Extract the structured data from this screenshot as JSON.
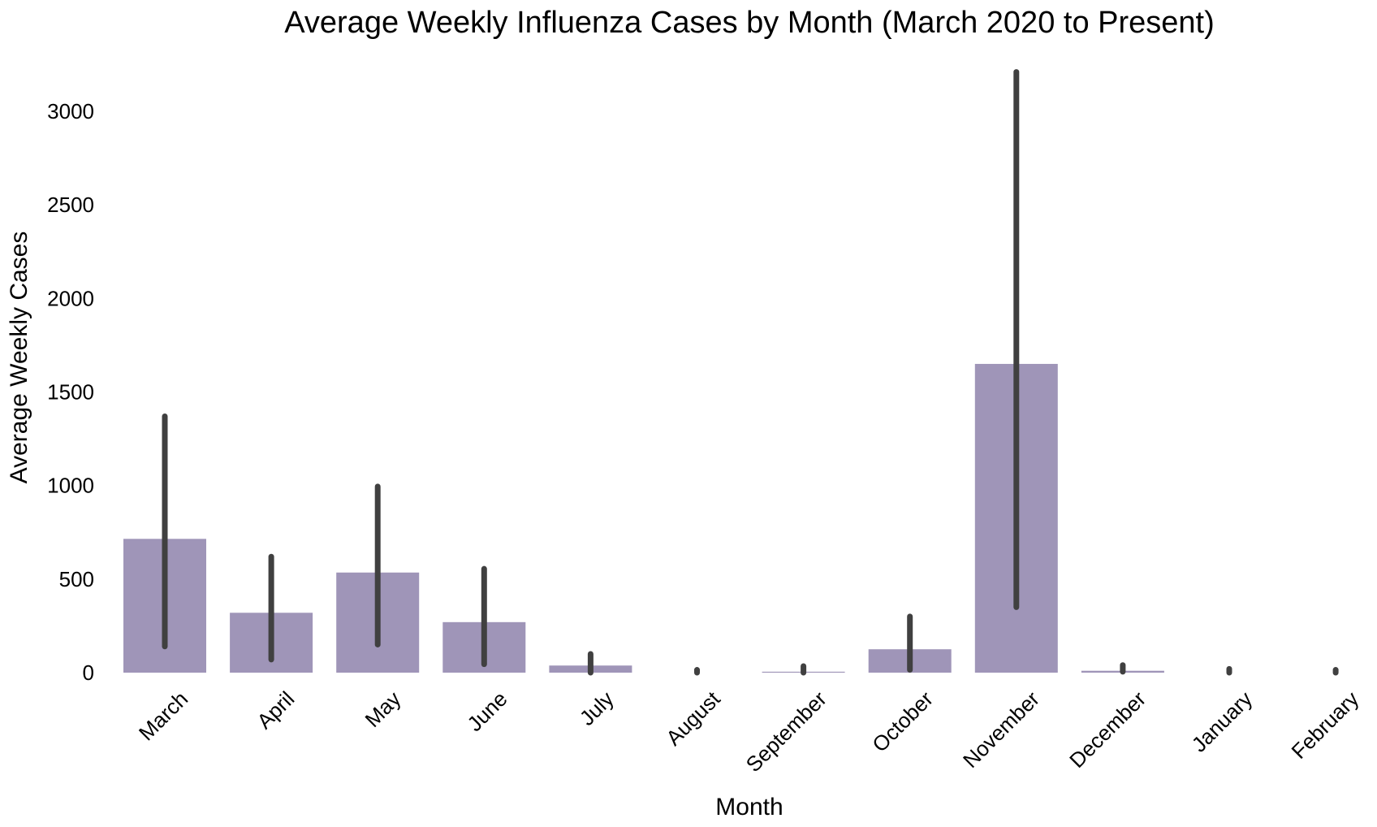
{
  "chart_data": {
    "type": "bar",
    "title": "Average Weekly Influenza Cases by Month (March 2020 to Present)",
    "xlabel": "Month",
    "ylabel": "Average Weekly Cases",
    "categories": [
      "March",
      "April",
      "May",
      "June",
      "July",
      "August",
      "September",
      "October",
      "November",
      "December",
      "January",
      "February"
    ],
    "values": [
      715,
      320,
      535,
      270,
      38,
      0,
      5,
      125,
      1650,
      10,
      0,
      0
    ],
    "error_bars": [
      [
        140,
        1370
      ],
      [
        70,
        620
      ],
      [
        150,
        995
      ],
      [
        45,
        555
      ],
      [
        0,
        100
      ],
      [
        0,
        15
      ],
      [
        0,
        35
      ],
      [
        15,
        300
      ],
      [
        350,
        3210
      ],
      [
        5,
        40
      ],
      [
        0,
        20
      ],
      [
        0,
        15
      ]
    ],
    "ylim": [
      0,
      3300
    ],
    "yticks": [
      0,
      500,
      1000,
      1500,
      2000,
      2500,
      3000
    ],
    "grid": false,
    "legend": "none",
    "colors": {
      "bar": "#9f95b8",
      "error_bar": "#404040"
    }
  }
}
